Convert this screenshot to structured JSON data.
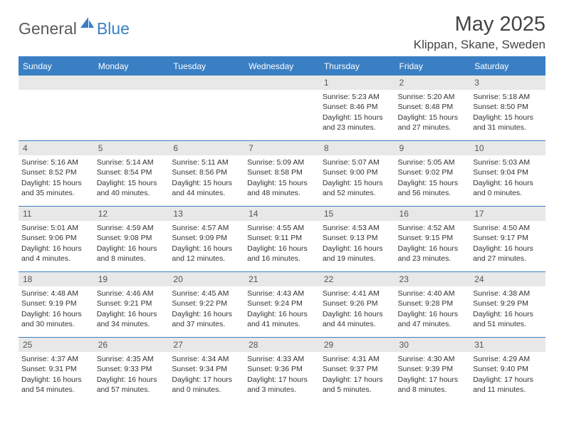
{
  "logo": {
    "text1": "General",
    "text2": "Blue"
  },
  "title": "May 2025",
  "location": "Klippan, Skane, Sweden",
  "colors": {
    "accent": "#3a7fc4",
    "header_text": "#ffffff",
    "daynum_bg": "#e8e8e8",
    "text": "#333333",
    "logo_gray": "#5a5a5a",
    "background": "#ffffff"
  },
  "day_headers": [
    "Sunday",
    "Monday",
    "Tuesday",
    "Wednesday",
    "Thursday",
    "Friday",
    "Saturday"
  ],
  "weeks": [
    [
      null,
      null,
      null,
      null,
      {
        "n": "1",
        "sr": "5:23 AM",
        "ss": "8:46 PM",
        "dl": "15 hours and 23 minutes."
      },
      {
        "n": "2",
        "sr": "5:20 AM",
        "ss": "8:48 PM",
        "dl": "15 hours and 27 minutes."
      },
      {
        "n": "3",
        "sr": "5:18 AM",
        "ss": "8:50 PM",
        "dl": "15 hours and 31 minutes."
      }
    ],
    [
      {
        "n": "4",
        "sr": "5:16 AM",
        "ss": "8:52 PM",
        "dl": "15 hours and 35 minutes."
      },
      {
        "n": "5",
        "sr": "5:14 AM",
        "ss": "8:54 PM",
        "dl": "15 hours and 40 minutes."
      },
      {
        "n": "6",
        "sr": "5:11 AM",
        "ss": "8:56 PM",
        "dl": "15 hours and 44 minutes."
      },
      {
        "n": "7",
        "sr": "5:09 AM",
        "ss": "8:58 PM",
        "dl": "15 hours and 48 minutes."
      },
      {
        "n": "8",
        "sr": "5:07 AM",
        "ss": "9:00 PM",
        "dl": "15 hours and 52 minutes."
      },
      {
        "n": "9",
        "sr": "5:05 AM",
        "ss": "9:02 PM",
        "dl": "15 hours and 56 minutes."
      },
      {
        "n": "10",
        "sr": "5:03 AM",
        "ss": "9:04 PM",
        "dl": "16 hours and 0 minutes."
      }
    ],
    [
      {
        "n": "11",
        "sr": "5:01 AM",
        "ss": "9:06 PM",
        "dl": "16 hours and 4 minutes."
      },
      {
        "n": "12",
        "sr": "4:59 AM",
        "ss": "9:08 PM",
        "dl": "16 hours and 8 minutes."
      },
      {
        "n": "13",
        "sr": "4:57 AM",
        "ss": "9:09 PM",
        "dl": "16 hours and 12 minutes."
      },
      {
        "n": "14",
        "sr": "4:55 AM",
        "ss": "9:11 PM",
        "dl": "16 hours and 16 minutes."
      },
      {
        "n": "15",
        "sr": "4:53 AM",
        "ss": "9:13 PM",
        "dl": "16 hours and 19 minutes."
      },
      {
        "n": "16",
        "sr": "4:52 AM",
        "ss": "9:15 PM",
        "dl": "16 hours and 23 minutes."
      },
      {
        "n": "17",
        "sr": "4:50 AM",
        "ss": "9:17 PM",
        "dl": "16 hours and 27 minutes."
      }
    ],
    [
      {
        "n": "18",
        "sr": "4:48 AM",
        "ss": "9:19 PM",
        "dl": "16 hours and 30 minutes."
      },
      {
        "n": "19",
        "sr": "4:46 AM",
        "ss": "9:21 PM",
        "dl": "16 hours and 34 minutes."
      },
      {
        "n": "20",
        "sr": "4:45 AM",
        "ss": "9:22 PM",
        "dl": "16 hours and 37 minutes."
      },
      {
        "n": "21",
        "sr": "4:43 AM",
        "ss": "9:24 PM",
        "dl": "16 hours and 41 minutes."
      },
      {
        "n": "22",
        "sr": "4:41 AM",
        "ss": "9:26 PM",
        "dl": "16 hours and 44 minutes."
      },
      {
        "n": "23",
        "sr": "4:40 AM",
        "ss": "9:28 PM",
        "dl": "16 hours and 47 minutes."
      },
      {
        "n": "24",
        "sr": "4:38 AM",
        "ss": "9:29 PM",
        "dl": "16 hours and 51 minutes."
      }
    ],
    [
      {
        "n": "25",
        "sr": "4:37 AM",
        "ss": "9:31 PM",
        "dl": "16 hours and 54 minutes."
      },
      {
        "n": "26",
        "sr": "4:35 AM",
        "ss": "9:33 PM",
        "dl": "16 hours and 57 minutes."
      },
      {
        "n": "27",
        "sr": "4:34 AM",
        "ss": "9:34 PM",
        "dl": "17 hours and 0 minutes."
      },
      {
        "n": "28",
        "sr": "4:33 AM",
        "ss": "9:36 PM",
        "dl": "17 hours and 3 minutes."
      },
      {
        "n": "29",
        "sr": "4:31 AM",
        "ss": "9:37 PM",
        "dl": "17 hours and 5 minutes."
      },
      {
        "n": "30",
        "sr": "4:30 AM",
        "ss": "9:39 PM",
        "dl": "17 hours and 8 minutes."
      },
      {
        "n": "31",
        "sr": "4:29 AM",
        "ss": "9:40 PM",
        "dl": "17 hours and 11 minutes."
      }
    ]
  ],
  "labels": {
    "sunrise": "Sunrise:",
    "sunset": "Sunset:",
    "daylight": "Daylight:"
  }
}
